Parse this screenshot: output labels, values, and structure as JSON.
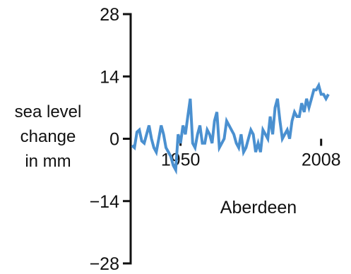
{
  "chart_data": {
    "type": "line",
    "title": "",
    "ylabel": [
      "sea level",
      "change",
      "in mm"
    ],
    "station_label": "Aberdeen",
    "y_ticks": [
      28,
      14,
      0,
      -14,
      -28
    ],
    "y_tick_labels": [
      "28",
      "14",
      "0",
      "−14",
      "−28"
    ],
    "ylim": [
      -28,
      28
    ],
    "x_tick_labels": [
      "1950",
      "2008"
    ],
    "x_ticks": [
      1950,
      2008
    ],
    "xlim": [
      1930,
      2011
    ],
    "series": [
      {
        "color": "#4a90d0",
        "x": [
          1930,
          1931,
          1932,
          1933,
          1934,
          1935,
          1936,
          1937,
          1938,
          1939,
          1940,
          1941,
          1942,
          1943,
          1944,
          1945,
          1946,
          1947,
          1948,
          1949,
          1950,
          1951,
          1952,
          1953,
          1954,
          1955,
          1956,
          1957,
          1958,
          1959,
          1960,
          1961,
          1962,
          1963,
          1964,
          1965,
          1966,
          1967,
          1968,
          1969,
          1970,
          1971,
          1972,
          1973,
          1974,
          1975,
          1976,
          1977,
          1978,
          1979,
          1980,
          1981,
          1982,
          1983,
          1984,
          1985,
          1986,
          1987,
          1988,
          1989,
          1990,
          1991,
          1992,
          1993,
          1994,
          1995,
          1996,
          1997,
          1998,
          1999,
          2000,
          2001,
          2002,
          2003,
          2004,
          2005,
          2006,
          2007,
          2008,
          2009,
          2010,
          2011
        ],
        "y": [
          -1.5,
          -2,
          1.5,
          2,
          -0.5,
          -1,
          1,
          3,
          0,
          -2,
          -3,
          0,
          3,
          1,
          -2,
          -3,
          -4,
          -6,
          -7,
          1,
          -1,
          3,
          1,
          5,
          9,
          -1,
          -2,
          1,
          3,
          -1,
          -1,
          2,
          1,
          -1,
          4,
          6,
          -2,
          -1,
          0,
          4,
          3,
          2,
          1,
          -1,
          -2,
          1,
          -3,
          -2,
          0,
          2,
          1,
          -3,
          -1,
          -3,
          2,
          1,
          0,
          5,
          1,
          7,
          9,
          4,
          0,
          1,
          2,
          0,
          4,
          6,
          5,
          5,
          8,
          6,
          9,
          7,
          9,
          11,
          11,
          12,
          10,
          10,
          9,
          10
        ]
      }
    ]
  }
}
